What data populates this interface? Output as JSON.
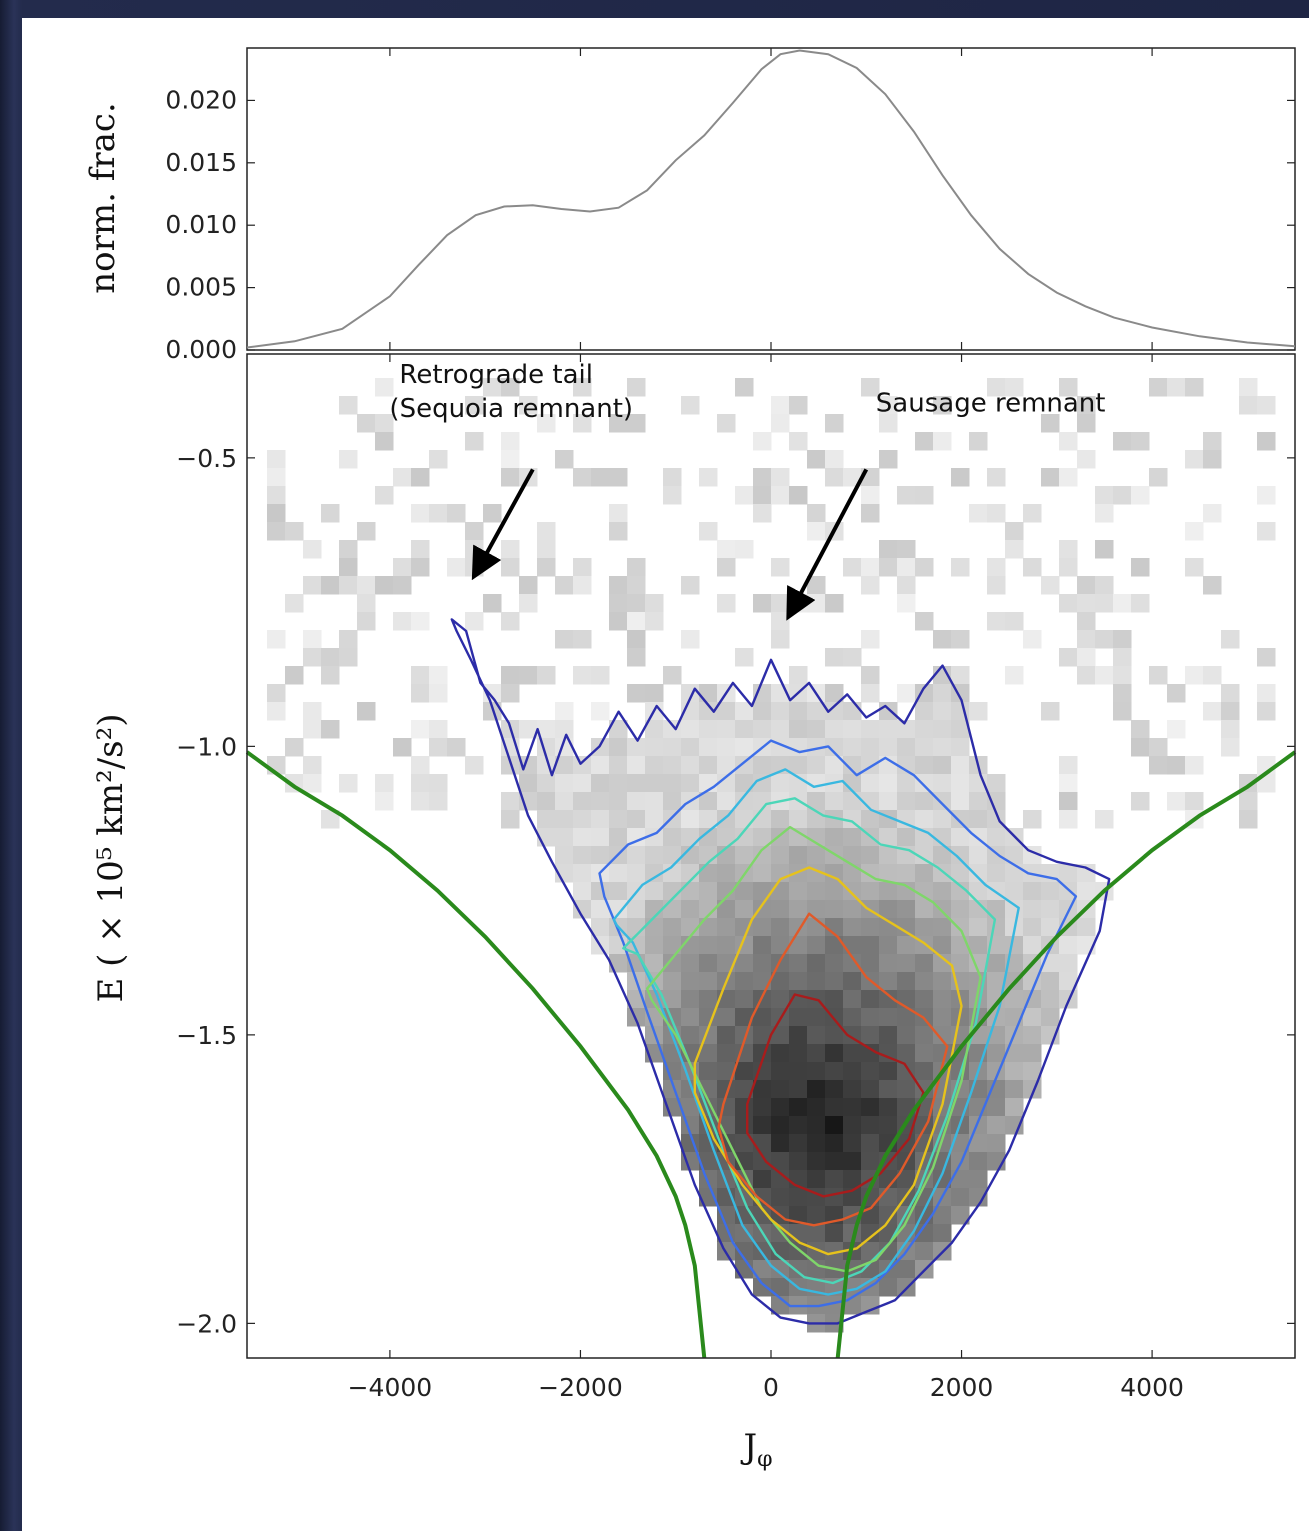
{
  "chart_data": [
    {
      "type": "line",
      "ylabel": "norm. frac.",
      "xlim": [
        -5500,
        5500
      ],
      "ylim": [
        0,
        0.0242
      ],
      "yticks": [
        "0.000",
        "0.005",
        "0.010",
        "0.015",
        "0.020"
      ],
      "series": [
        {
          "color": "#8a8a8a",
          "x": [
            -5500,
            -5000,
            -4500,
            -4000,
            -3700,
            -3400,
            -3100,
            -2800,
            -2500,
            -2200,
            -1900,
            -1600,
            -1300,
            -1000,
            -700,
            -400,
            -100,
            100,
            300,
            600,
            900,
            1200,
            1500,
            1800,
            2100,
            2400,
            2700,
            3000,
            3300,
            3600,
            4000,
            4500,
            5000,
            5500
          ],
          "y": [
            0.0002,
            0.0007,
            0.0017,
            0.0043,
            0.0068,
            0.0092,
            0.0108,
            0.0115,
            0.0116,
            0.0113,
            0.0111,
            0.0114,
            0.0128,
            0.0152,
            0.0172,
            0.0198,
            0.0225,
            0.0237,
            0.024,
            0.0237,
            0.0226,
            0.0205,
            0.0175,
            0.014,
            0.0108,
            0.0081,
            0.0061,
            0.0046,
            0.0035,
            0.0026,
            0.0018,
            0.0011,
            0.0006,
            0.0003
          ]
        }
      ]
    },
    {
      "type": "heatmap",
      "xlabel": "J",
      "xlabel_sub": "φ",
      "ylabel": "E ( × 10⁵ km²/s²)",
      "xlim": [
        -5500,
        5500
      ],
      "ylim": [
        -2.06,
        -0.32
      ],
      "xticks": [
        "−4000",
        "−2000",
        "0",
        "2000",
        "4000"
      ],
      "yticks": [
        "−2.0",
        "−1.5",
        "−1.0",
        "−0.5"
      ],
      "density_center": {
        "x": 500,
        "y": -1.65
      },
      "boundary_curve": {
        "color": "#2a8a1c",
        "x": [
          -5500,
          -5000,
          -4500,
          -4000,
          -3500,
          -3000,
          -2500,
          -2000,
          -1500,
          -1200,
          -1000,
          -900,
          -800,
          -700
        ],
        "y": [
          -1.01,
          -1.07,
          -1.12,
          -1.18,
          -1.25,
          -1.33,
          -1.42,
          -1.52,
          -1.63,
          -1.71,
          -1.78,
          -1.83,
          -1.9,
          -2.06
        ]
      },
      "contours": [
        {
          "level": 1,
          "color": "#2c2ca8",
          "x": [
            -3350,
            -3200,
            -3050,
            -2900,
            -2750,
            -2600,
            -2450,
            -2300,
            -2150,
            -2000,
            -1800,
            -1600,
            -1400,
            -1200,
            -1000,
            -800,
            -600,
            -400,
            -200,
            0,
            200,
            400,
            600,
            800,
            1000,
            1200,
            1400,
            1600,
            1800,
            2000,
            2200,
            2400,
            2700,
            3000,
            3300,
            3550,
            3450,
            3100,
            2800,
            2500,
            2200,
            1900,
            1600,
            1300,
            1000,
            700,
            400,
            100,
            -200,
            -500,
            -800,
            -1100,
            -1400,
            -1700,
            -2000,
            -2300,
            -2550,
            -2750,
            -2950,
            -3150,
            -3300
          ],
          "y": [
            -0.78,
            -0.8,
            -0.89,
            -0.92,
            -0.96,
            -1.04,
            -0.97,
            -1.05,
            -0.98,
            -1.03,
            -1.0,
            -0.94,
            -0.99,
            -0.93,
            -0.97,
            -0.9,
            -0.94,
            -0.89,
            -0.93,
            -0.85,
            -0.92,
            -0.89,
            -0.94,
            -0.91,
            -0.95,
            -0.93,
            -0.96,
            -0.9,
            -0.86,
            -0.92,
            -1.05,
            -1.13,
            -1.18,
            -1.2,
            -1.21,
            -1.23,
            -1.32,
            -1.45,
            -1.58,
            -1.7,
            -1.79,
            -1.86,
            -1.91,
            -1.96,
            -1.98,
            -2.0,
            -2.0,
            -1.99,
            -1.95,
            -1.87,
            -1.76,
            -1.62,
            -1.48,
            -1.37,
            -1.29,
            -1.2,
            -1.12,
            -1.02,
            -0.92,
            -0.85,
            -0.8
          ]
        },
        {
          "level": 2,
          "color": "#3d6ee8",
          "x": [
            -1800,
            -1500,
            -1200,
            -900,
            -600,
            -300,
            0,
            300,
            600,
            900,
            1200,
            1500,
            1800,
            2100,
            2400,
            2700,
            3000,
            3200,
            2900,
            2600,
            2300,
            2000,
            1700,
            1400,
            1100,
            800,
            500,
            200,
            -100,
            -400,
            -700,
            -1000,
            -1300,
            -1550,
            -1750
          ],
          "y": [
            -1.22,
            -1.17,
            -1.15,
            -1.1,
            -1.07,
            -1.03,
            -0.99,
            -1.01,
            -1.0,
            -1.05,
            -1.02,
            -1.05,
            -1.1,
            -1.15,
            -1.19,
            -1.22,
            -1.23,
            -1.26,
            -1.36,
            -1.48,
            -1.6,
            -1.72,
            -1.81,
            -1.88,
            -1.93,
            -1.96,
            -1.97,
            -1.97,
            -1.93,
            -1.86,
            -1.74,
            -1.6,
            -1.46,
            -1.34,
            -1.26
          ]
        },
        {
          "level": 3,
          "color": "#39b8e0",
          "x": [
            -1650,
            -1350,
            -1050,
            -750,
            -450,
            -150,
            150,
            450,
            750,
            1050,
            1350,
            1650,
            1950,
            2250,
            2600,
            2400,
            2100,
            1800,
            1500,
            1200,
            900,
            600,
            300,
            0,
            -300,
            -600,
            -900,
            -1200,
            -1450,
            -1620
          ],
          "y": [
            -1.3,
            -1.24,
            -1.21,
            -1.16,
            -1.12,
            -1.06,
            -1.04,
            -1.07,
            -1.06,
            -1.11,
            -1.13,
            -1.15,
            -1.19,
            -1.24,
            -1.28,
            -1.45,
            -1.6,
            -1.74,
            -1.84,
            -1.91,
            -1.94,
            -1.95,
            -1.94,
            -1.9,
            -1.83,
            -1.7,
            -1.56,
            -1.43,
            -1.34,
            -1.31
          ]
        },
        {
          "level": 4,
          "color": "#4cd6b8",
          "x": [
            -1550,
            -1250,
            -950,
            -650,
            -350,
            -50,
            250,
            550,
            850,
            1150,
            1450,
            1750,
            2050,
            2350,
            2150,
            1850,
            1550,
            1250,
            950,
            650,
            350,
            50,
            -250,
            -550,
            -850,
            -1150,
            -1400
          ],
          "y": [
            -1.35,
            -1.3,
            -1.25,
            -1.2,
            -1.16,
            -1.1,
            -1.09,
            -1.12,
            -1.13,
            -1.17,
            -1.18,
            -1.21,
            -1.25,
            -1.3,
            -1.48,
            -1.64,
            -1.77,
            -1.86,
            -1.91,
            -1.93,
            -1.92,
            -1.88,
            -1.8,
            -1.68,
            -1.55,
            -1.43,
            -1.36
          ]
        },
        {
          "level": 5,
          "color": "#7fd66a",
          "x": [
            -1300,
            -1000,
            -700,
            -400,
            -100,
            200,
            500,
            800,
            1100,
            1400,
            1700,
            2000,
            2200,
            2000,
            1700,
            1400,
            1100,
            800,
            500,
            200,
            -100,
            -400,
            -700,
            -1000,
            -1250
          ],
          "y": [
            -1.42,
            -1.36,
            -1.3,
            -1.25,
            -1.18,
            -1.14,
            -1.17,
            -1.2,
            -1.23,
            -1.24,
            -1.27,
            -1.32,
            -1.4,
            -1.58,
            -1.73,
            -1.83,
            -1.89,
            -1.91,
            -1.9,
            -1.86,
            -1.8,
            -1.7,
            -1.6,
            -1.5,
            -1.44
          ]
        },
        {
          "level": 6,
          "color": "#e6c21c",
          "x": [
            -800,
            -500,
            -200,
            100,
            400,
            700,
            1000,
            1300,
            1600,
            1900,
            2000,
            1800,
            1500,
            1200,
            900,
            600,
            300,
            0,
            -300,
            -600,
            -800
          ],
          "y": [
            -1.55,
            -1.42,
            -1.3,
            -1.23,
            -1.21,
            -1.23,
            -1.28,
            -1.31,
            -1.34,
            -1.38,
            -1.45,
            -1.62,
            -1.76,
            -1.83,
            -1.87,
            -1.88,
            -1.86,
            -1.82,
            -1.76,
            -1.68,
            -1.6
          ]
        },
        {
          "level": 7,
          "color": "#e05a2a",
          "x": [
            -500,
            -200,
            100,
            400,
            700,
            1000,
            1300,
            1600,
            1850,
            1650,
            1350,
            1050,
            750,
            450,
            150,
            -150,
            -450,
            -550
          ],
          "y": [
            -1.62,
            -1.47,
            -1.37,
            -1.29,
            -1.33,
            -1.4,
            -1.44,
            -1.47,
            -1.52,
            -1.65,
            -1.74,
            -1.8,
            -1.82,
            -1.83,
            -1.82,
            -1.78,
            -1.72,
            -1.66
          ]
        },
        {
          "level": 8,
          "color": "#a81c1c",
          "x": [
            -250,
            0,
            250,
            500,
            800,
            1100,
            1400,
            1600,
            1450,
            1150,
            850,
            550,
            250,
            -50,
            -250
          ],
          "y": [
            -1.62,
            -1.5,
            -1.43,
            -1.44,
            -1.5,
            -1.53,
            -1.55,
            -1.6,
            -1.68,
            -1.74,
            -1.77,
            -1.78,
            -1.76,
            -1.72,
            -1.67
          ]
        }
      ],
      "annotations": [
        {
          "line1": "Retrograde tail",
          "line2": "(Sequoia remnant)",
          "text_x": -3900,
          "text_y": -0.37,
          "arrow_from_x": -2500,
          "arrow_from_y": -0.52,
          "arrow_to_x": -3100,
          "arrow_to_y": -0.7
        },
        {
          "line1": "Sausage remnant",
          "text_x": 1100,
          "text_y": -0.42,
          "arrow_from_x": 1000,
          "arrow_from_y": -0.52,
          "arrow_to_x": 200,
          "arrow_to_y": -0.77
        }
      ]
    }
  ]
}
